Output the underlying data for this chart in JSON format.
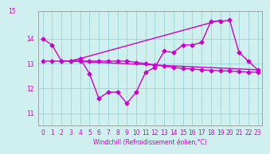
{
  "title": "",
  "xlabel": "Windchill (Refroidissement éolien,°C)",
  "background_color": "#d0f0f0",
  "grid_color": "#a0d8d8",
  "line_color": "#cc00cc",
  "spine_color": "#888888",
  "x_ticks": [
    0,
    1,
    2,
    3,
    4,
    5,
    6,
    7,
    8,
    9,
    10,
    11,
    12,
    13,
    14,
    15,
    16,
    17,
    18,
    19,
    20,
    21,
    22,
    23
  ],
  "y_ticks": [
    11,
    12,
    13,
    14
  ],
  "y_top_label": "15",
  "ylim": [
    10.5,
    15.1
  ],
  "xlim": [
    -0.5,
    23.5
  ],
  "series1_x": [
    0,
    1,
    2,
    3,
    4,
    5,
    6,
    7,
    8,
    9,
    10,
    11,
    12,
    13,
    14,
    15,
    16,
    17,
    18,
    19,
    20,
    21,
    22,
    23
  ],
  "series1_y": [
    14.0,
    13.75,
    13.1,
    13.1,
    13.2,
    12.6,
    11.6,
    11.85,
    11.85,
    11.4,
    11.85,
    12.65,
    12.85,
    13.5,
    13.45,
    13.75,
    13.75,
    13.85,
    14.7,
    14.7,
    14.75,
    13.45,
    13.1,
    12.75
  ],
  "series2_x": [
    0,
    1,
    2,
    3,
    4,
    5,
    6,
    7,
    8,
    9,
    10,
    11,
    12,
    13,
    14,
    15,
    16,
    17,
    18,
    19,
    20,
    21,
    22,
    23
  ],
  "series2_y": [
    13.1,
    13.1,
    13.1,
    13.1,
    13.1,
    13.1,
    13.1,
    13.1,
    13.1,
    13.1,
    13.05,
    13.0,
    12.95,
    12.9,
    12.85,
    12.8,
    12.78,
    12.75,
    12.73,
    12.71,
    12.7,
    12.68,
    12.66,
    12.65
  ],
  "series3_x": [
    3,
    19
  ],
  "series3_y": [
    13.1,
    14.75
  ],
  "series4_x": [
    3,
    23
  ],
  "series4_y": [
    13.1,
    12.75
  ],
  "tick_fontsize": 5.5,
  "xlabel_fontsize": 5.5,
  "linewidth": 1.0,
  "markersize": 2.5
}
